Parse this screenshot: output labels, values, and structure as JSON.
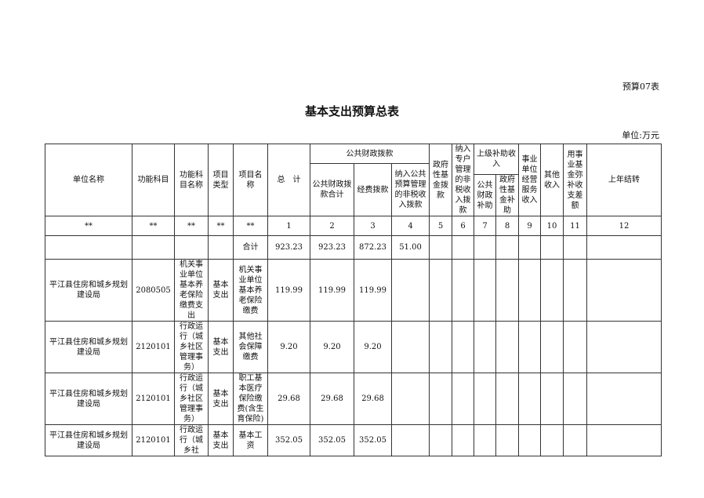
{
  "form_no": "预算07表",
  "title": "基本支出预算总表",
  "unit": "单位:万元",
  "headers": {
    "unit_name": "单位名称",
    "func_code": "功能科目",
    "func_name": "功能科目名称",
    "proj_type": "项目类型",
    "proj_name": "项目名称",
    "total": "总　计",
    "public_finance": "公共财政拨款",
    "pf_total": "公共财政拨款合计",
    "pf_funds": "经费拨款",
    "pf_nontax": "纳入公共预算管理的非税收入拨款",
    "gov_fund": "政府性基金拨款",
    "special_nontax": "纳入专户管理的非税收入拨款",
    "superior_subsidy": "上级补助收入",
    "sub_public": "公共财政补助",
    "sub_gov_fund": "政府性基金补助",
    "business_income": "事业单位经营服务收入",
    "other_income": "其他收入",
    "fund_offset": "用事业基金弥补收支差额",
    "carryover": "上年结转"
  },
  "col_numbers": [
    "**",
    "**",
    "**",
    "**",
    "**",
    "1",
    "2",
    "3",
    "4",
    "5",
    "6",
    "7",
    "8",
    "9",
    "10",
    "11",
    "12"
  ],
  "total_row": {
    "label": "合计",
    "total": "923.23",
    "pf_total": "923.23",
    "pf_funds": "872.23",
    "pf_nontax": "51.00"
  },
  "rows": [
    {
      "unit": "平江县住房和城乡规划建设局",
      "code": "2080505",
      "func_name": "机关事业单位基本养老保险缴费支出",
      "type": "基本支出",
      "proj": "机关事业单位基本养老保险缴费",
      "total": "119.99",
      "pf_total": "119.99",
      "pf_funds": "119.99"
    },
    {
      "unit": "平江县住房和城乡规划建设局",
      "code": "2120101",
      "func_name": "行政运行（城乡社区管理事务）",
      "type": "基本支出",
      "proj": "其他社会保障缴费",
      "total": "9.20",
      "pf_total": "9.20",
      "pf_funds": "9.20"
    },
    {
      "unit": "平江县住房和城乡规划建设局",
      "code": "2120101",
      "func_name": "行政运行（城乡社区管理事务）",
      "type": "基本支出",
      "proj": "职工基本医疗保险缴费(含生育保险)",
      "total": "29.68",
      "pf_total": "29.68",
      "pf_funds": "29.68"
    },
    {
      "unit": "平江县住房和城乡规划建设局",
      "code": "2120101",
      "func_name": "行政运行（城乡社",
      "type": "基本支出",
      "proj": "基本工资",
      "total": "352.05",
      "pf_total": "352.05",
      "pf_funds": "352.05"
    }
  ]
}
